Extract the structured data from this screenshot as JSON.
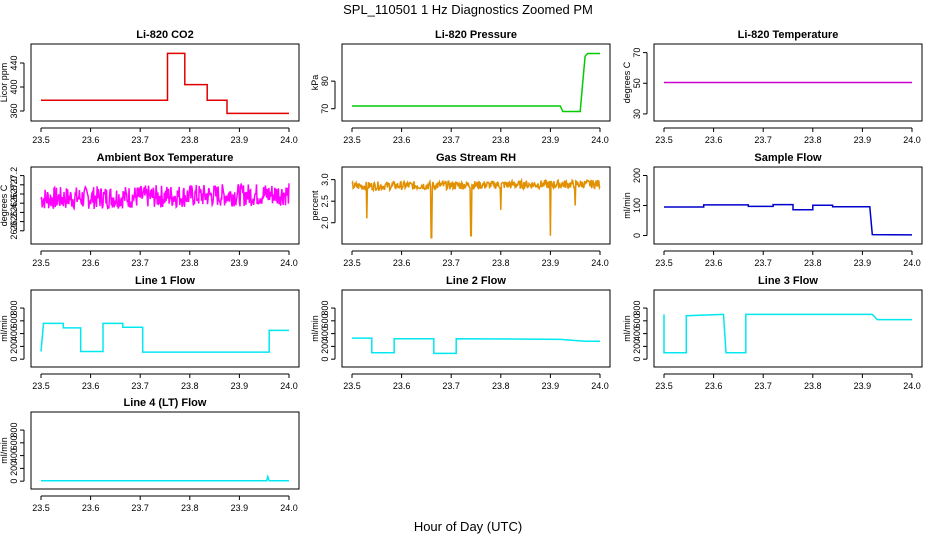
{
  "figure": {
    "title": "SPL_110501  1 Hz Diagnostics Zoomed PM",
    "xlabel": "Hour of Day (UTC)"
  },
  "chart_data": [
    {
      "type": "line",
      "id": "co2",
      "title": "Li-820 CO2",
      "ylabel": "Licor ppm",
      "color": "#e00000",
      "xlim": [
        23.5,
        24.0
      ],
      "ylim": [
        350,
        465
      ],
      "xticks": [
        23.5,
        23.6,
        23.7,
        23.8,
        23.9,
        24.0
      ],
      "yticks": [
        360,
        400,
        440
      ],
      "series": [
        {
          "name": "Li-820 CO2",
          "x": [
            23.5,
            23.755,
            23.755,
            23.79,
            23.79,
            23.835,
            23.835,
            23.875,
            23.875,
            24.0
          ],
          "y": [
            378,
            378,
            456,
            456,
            404,
            404,
            378,
            378,
            356,
            356
          ]
        }
      ]
    },
    {
      "type": "line",
      "id": "pressure",
      "title": "Li-820 Pressure",
      "ylabel": "kPa",
      "color": "#00cc00",
      "xlim": [
        23.5,
        24.0
      ],
      "ylim": [
        67,
        92
      ],
      "xticks": [
        23.5,
        23.6,
        23.7,
        23.8,
        23.9,
        24.0
      ],
      "yticks": [
        70,
        80
      ],
      "series": [
        {
          "name": "Li-820 Pressure",
          "x": [
            23.5,
            23.7,
            23.79,
            23.92,
            23.925,
            23.96,
            23.965,
            23.97,
            23.975,
            24.0
          ],
          "y": [
            71,
            71,
            71,
            71,
            69,
            69,
            79,
            89,
            90,
            90
          ]
        }
      ]
    },
    {
      "type": "line",
      "id": "temperature",
      "title": "Li-820 Temperature",
      "ylabel": "degrees C",
      "color": "#cc00cc",
      "xlim": [
        23.5,
        24.0
      ],
      "ylim": [
        28,
        73
      ],
      "xticks": [
        23.5,
        23.6,
        23.7,
        23.8,
        23.9,
        24.0
      ],
      "yticks": [
        30,
        50,
        70
      ],
      "series": [
        {
          "name": "Li-820 Temperature",
          "x": [
            23.5,
            24.0
          ],
          "y": [
            50.5,
            50.5
          ]
        }
      ]
    },
    {
      "type": "line",
      "id": "boxtemp",
      "title": "Ambient Box Temperature",
      "ylabel": "degrees C",
      "color": "#ff00ff",
      "xlim": [
        23.5,
        24.0
      ],
      "ylim": [
        25.8,
        27.3
      ],
      "xticks": [
        23.5,
        23.6,
        23.7,
        23.8,
        23.9,
        24.0
      ],
      "yticks": [
        26.0,
        26.2,
        26.4,
        26.6,
        26.8,
        27.0,
        27.2
      ],
      "series": [
        {
          "name": "Ambient Box Temperature",
          "x": [
            23.5,
            24.0
          ],
          "y": [
            26.7,
            26.8
          ],
          "noise": 0.25
        }
      ]
    },
    {
      "type": "line",
      "id": "rh",
      "title": "Gas Stream RH",
      "ylabel": "percent",
      "color": "#e09000",
      "xlim": [
        23.5,
        24.0
      ],
      "ylim": [
        1.6,
        3.2
      ],
      "xticks": [
        23.5,
        23.6,
        23.7,
        23.8,
        23.9,
        24.0
      ],
      "yticks": [
        2.0,
        2.5,
        3.0
      ],
      "series": [
        {
          "name": "Gas Stream RH",
          "x": [
            23.5,
            24.0
          ],
          "y": [
            2.85,
            2.9
          ],
          "noise": 0.1,
          "dips": [
            [
              23.53,
              2.1
            ],
            [
              23.66,
              1.65
            ],
            [
              23.74,
              1.7
            ],
            [
              23.9,
              1.7
            ],
            [
              23.8,
              2.3
            ],
            [
              23.95,
              2.4
            ]
          ]
        }
      ]
    },
    {
      "type": "line",
      "id": "sampleflow",
      "title": "Sample Flow",
      "ylabel": "ml/min",
      "color": "#0000cc",
      "xlim": [
        23.5,
        24.0
      ],
      "ylim": [
        -15,
        215
      ],
      "xticks": [
        23.5,
        23.6,
        23.7,
        23.8,
        23.9,
        24.0
      ],
      "yticks": [
        0,
        100,
        200
      ],
      "series": [
        {
          "name": "Sample Flow",
          "x": [
            23.5,
            23.58,
            23.58,
            23.67,
            23.67,
            23.72,
            23.72,
            23.76,
            23.76,
            23.8,
            23.8,
            23.84,
            23.84,
            23.915,
            23.92,
            24.0
          ],
          "y": [
            95,
            95,
            102,
            102,
            97,
            97,
            103,
            103,
            86,
            86,
            101,
            101,
            96,
            96,
            3,
            2
          ]
        }
      ]
    },
    {
      "type": "line",
      "id": "line1",
      "title": "Line 1 Flow",
      "ylabel": "ml/min",
      "color": "#00e8f0",
      "xlim": [
        23.5,
        24.0
      ],
      "ylim": [
        -60,
        1020
      ],
      "xticks": [
        23.5,
        23.6,
        23.7,
        23.8,
        23.9,
        24.0
      ],
      "yticks": [
        0,
        200,
        400,
        600,
        800
      ],
      "series": [
        {
          "name": "Line 1 Flow",
          "x": [
            23.5,
            23.505,
            23.545,
            23.545,
            23.58,
            23.58,
            23.625,
            23.625,
            23.665,
            23.665,
            23.705,
            23.705,
            23.96,
            23.96,
            24.0
          ],
          "y": [
            120,
            560,
            560,
            490,
            490,
            120,
            120,
            560,
            560,
            500,
            500,
            110,
            110,
            450,
            450
          ]
        }
      ]
    },
    {
      "type": "line",
      "id": "line2",
      "title": "Line 2 Flow",
      "ylabel": "ml/min",
      "color": "#00e8f0",
      "xlim": [
        23.5,
        24.0
      ],
      "ylim": [
        -60,
        1020
      ],
      "xticks": [
        23.5,
        23.6,
        23.7,
        23.8,
        23.9,
        24.0
      ],
      "yticks": [
        0,
        200,
        400,
        600,
        800
      ],
      "series": [
        {
          "name": "Line 2 Flow",
          "x": [
            23.5,
            23.54,
            23.54,
            23.585,
            23.585,
            23.665,
            23.665,
            23.71,
            23.71,
            23.92,
            23.97,
            24.0
          ],
          "y": [
            330,
            330,
            100,
            100,
            320,
            320,
            90,
            90,
            320,
            310,
            280,
            280
          ]
        }
      ]
    },
    {
      "type": "line",
      "id": "line3",
      "title": "Line 3 Flow",
      "ylabel": "ml/min",
      "color": "#00e8f0",
      "xlim": [
        23.5,
        24.0
      ],
      "ylim": [
        -60,
        1020
      ],
      "xticks": [
        23.5,
        23.6,
        23.7,
        23.8,
        23.9,
        24.0
      ],
      "yticks": [
        0,
        200,
        400,
        600,
        800
      ],
      "series": [
        {
          "name": "Line 3 Flow",
          "x": [
            23.5,
            23.5,
            23.505,
            23.545,
            23.545,
            23.62,
            23.62,
            23.625,
            23.665,
            23.665,
            23.92,
            23.93,
            24.0
          ],
          "y": [
            700,
            100,
            100,
            100,
            680,
            700,
            700,
            100,
            100,
            700,
            700,
            620,
            620
          ]
        }
      ]
    },
    {
      "type": "line",
      "id": "line4",
      "title": "Line 4 (LT) Flow",
      "ylabel": "ml/min",
      "color": "#00e8f0",
      "xlim": [
        23.5,
        24.0
      ],
      "ylim": [
        -60,
        1020
      ],
      "xticks": [
        23.5,
        23.6,
        23.7,
        23.8,
        23.9,
        24.0
      ],
      "yticks": [
        0,
        200,
        400,
        600,
        800
      ],
      "series": [
        {
          "name": "Line 4 (LT) Flow",
          "x": [
            23.5,
            23.955,
            23.957,
            23.96,
            24.0
          ],
          "y": [
            5,
            5,
            70,
            5,
            5
          ]
        }
      ]
    }
  ]
}
